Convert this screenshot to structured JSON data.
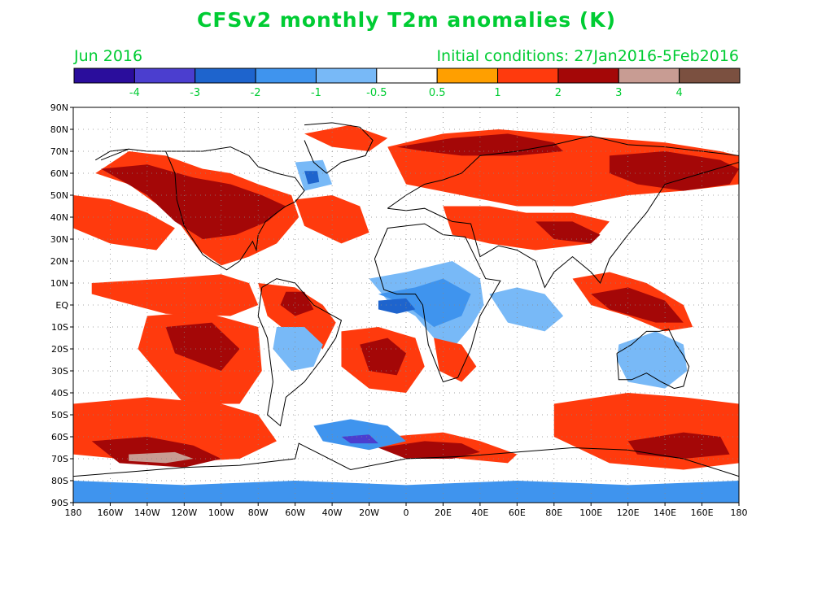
{
  "title": "CFSv2 monthly T2m anomalies (K)",
  "valid_month": "Jun 2016",
  "initial_conditions": "Initial conditions: 27Jan2016-5Feb2016",
  "colors": {
    "label_green": "#00cc33",
    "ocean": "#ffffff",
    "coast": "#000000"
  },
  "colorbar": {
    "colors": [
      "#2a0d9c",
      "#4b3ecf",
      "#1e64cd",
      "#3f94ee",
      "#78b9f7",
      "#ffffff",
      "#ff9f00",
      "#ff3a0d",
      "#a40707",
      "#c89c93",
      "#7b5040"
    ],
    "labels": [
      "-4",
      "-3",
      "-2",
      "-1",
      "-0.5",
      "0.5",
      "1",
      "2",
      "3",
      "4"
    ]
  },
  "map": {
    "lon_labels": [
      "180",
      "160W",
      "140W",
      "120W",
      "100W",
      "80W",
      "60W",
      "40W",
      "20W",
      "0",
      "20E",
      "40E",
      "60E",
      "80E",
      "100E",
      "120E",
      "140E",
      "160E",
      "180"
    ],
    "lat_labels": [
      "90N",
      "80N",
      "70N",
      "60N",
      "50N",
      "40N",
      "30N",
      "20N",
      "10N",
      "EQ",
      "10S",
      "20S",
      "30S",
      "40S",
      "50S",
      "60S",
      "70S",
      "80S",
      "90S"
    ],
    "anomaly_regions": [
      {
        "name": "north-america-warm",
        "level": "1",
        "lon": [
          -168,
          -150,
          -130,
          -110,
          -95,
          -80,
          -62,
          -58,
          -70,
          -85,
          -100,
          -112,
          -125,
          -150
        ],
        "lat": [
          60,
          70,
          68,
          62,
          60,
          55,
          50,
          40,
          28,
          22,
          18,
          25,
          40,
          55
        ]
      },
      {
        "name": "north-america-core",
        "level": "2",
        "lon": [
          -165,
          -140,
          -115,
          -95,
          -78,
          -65,
          -75,
          -92,
          -110,
          -125,
          -140
        ],
        "lat": [
          62,
          64,
          58,
          55,
          50,
          45,
          38,
          32,
          30,
          38,
          50
        ]
      },
      {
        "name": "north-atlantic-band",
        "level": "1",
        "lon": [
          -60,
          -40,
          -25,
          -20,
          -35,
          -55
        ],
        "lat": [
          48,
          50,
          45,
          33,
          28,
          36
        ]
      },
      {
        "name": "greenland-north",
        "level": "1",
        "lon": [
          -55,
          -30,
          -10,
          -20,
          -40
        ],
        "lat": [
          78,
          82,
          76,
          70,
          72
        ]
      },
      {
        "name": "labrador-cold",
        "level": "-0.5",
        "lon": [
          -60,
          -45,
          -40,
          -55
        ],
        "lat": [
          65,
          66,
          55,
          52
        ]
      },
      {
        "name": "labrador-cold-core",
        "level": "-2",
        "lon": [
          -55,
          -48,
          -47,
          -53
        ],
        "lat": [
          61,
          61,
          56,
          55
        ]
      },
      {
        "name": "north-pacific-warm",
        "level": "1",
        "lon": [
          -180,
          -160,
          -140,
          -125,
          -135,
          -160,
          -180
        ],
        "lat": [
          50,
          48,
          42,
          35,
          25,
          28,
          35
        ]
      },
      {
        "name": "east-pacific-tropics",
        "level": "1",
        "lon": [
          -170,
          -130,
          -100,
          -85,
          -80,
          -95,
          -130,
          -170
        ],
        "lat": [
          10,
          12,
          14,
          10,
          0,
          -5,
          -4,
          5
        ]
      },
      {
        "name": "south-pacific-warm",
        "level": "1",
        "lon": [
          -140,
          -110,
          -80,
          -78,
          -90,
          -120,
          -145
        ],
        "lat": [
          -5,
          -3,
          -10,
          -30,
          -45,
          -45,
          -20
        ]
      },
      {
        "name": "south-pacific-core",
        "level": "2",
        "lon": [
          -130,
          -105,
          -90,
          -100,
          -125
        ],
        "lat": [
          -10,
          -8,
          -20,
          -30,
          -22
        ]
      },
      {
        "name": "amazon-warm",
        "level": "1",
        "lon": [
          -80,
          -60,
          -45,
          -38,
          -45,
          -60,
          -75
        ],
        "lat": [
          10,
          8,
          0,
          -8,
          -20,
          -15,
          -5
        ]
      },
      {
        "name": "amazon-core",
        "level": "2",
        "lon": [
          -65,
          -55,
          -50,
          -60,
          -68
        ],
        "lat": [
          6,
          6,
          -2,
          -5,
          0
        ]
      },
      {
        "name": "south-america-cold",
        "level": "-0.5",
        "lon": [
          -70,
          -55,
          -45,
          -50,
          -62,
          -72
        ],
        "lat": [
          -10,
          -10,
          -18,
          -28,
          -30,
          -20
        ]
      },
      {
        "name": "south-atlantic-warm",
        "level": "1",
        "lon": [
          -35,
          -15,
          5,
          10,
          0,
          -20,
          -35
        ],
        "lat": [
          -12,
          -10,
          -15,
          -28,
          -40,
          -38,
          -28
        ]
      },
      {
        "name": "south-atlantic-core",
        "level": "2",
        "lon": [
          -25,
          -10,
          0,
          -5,
          -20
        ],
        "lat": [
          -18,
          -15,
          -22,
          -32,
          -30
        ]
      },
      {
        "name": "africa-cold",
        "level": "-0.5",
        "lon": [
          -20,
          0,
          25,
          40,
          42,
          35,
          25,
          15,
          5,
          -10
        ],
        "lat": [
          12,
          15,
          20,
          12,
          0,
          -10,
          -20,
          -15,
          -5,
          2
        ]
      },
      {
        "name": "africa-cold-core",
        "level": "-1",
        "lon": [
          -15,
          5,
          20,
          35,
          30,
          15,
          0
        ],
        "lat": [
          5,
          8,
          12,
          5,
          -5,
          -10,
          0
        ]
      },
      {
        "name": "gulf-of-guinea-cold",
        "level": "-2",
        "lon": [
          -15,
          0,
          5,
          -5,
          -15
        ],
        "lat": [
          2,
          3,
          -2,
          -4,
          -2
        ]
      },
      {
        "name": "southern-africa-warm",
        "level": "1",
        "lon": [
          15,
          30,
          38,
          30,
          18
        ],
        "lat": [
          -15,
          -18,
          -28,
          -35,
          -30
        ]
      },
      {
        "name": "eurasia-north-warm",
        "level": "1",
        "lon": [
          -10,
          20,
          50,
          80,
          110,
          140,
          170,
          180,
          180,
          150,
          120,
          90,
          60,
          30,
          0
        ],
        "lat": [
          72,
          78,
          80,
          78,
          76,
          74,
          70,
          68,
          55,
          52,
          50,
          45,
          45,
          50,
          55
        ]
      },
      {
        "name": "siberia-core",
        "level": "2",
        "lon": [
          -5,
          25,
          55,
          80,
          85,
          60,
          30,
          10
        ],
        "lat": [
          72,
          76,
          78,
          74,
          70,
          68,
          68,
          70
        ]
      },
      {
        "name": "east-siberia-core",
        "level": "2",
        "lon": [
          110,
          140,
          170,
          180,
          175,
          150,
          125,
          110
        ],
        "lat": [
          68,
          70,
          66,
          62,
          55,
          52,
          55,
          60
        ]
      },
      {
        "name": "middle-east-warm",
        "level": "1",
        "lon": [
          20,
          45,
          65,
          90,
          110,
          100,
          70,
          45,
          25
        ],
        "lat": [
          45,
          45,
          42,
          42,
          38,
          28,
          25,
          28,
          32
        ]
      },
      {
        "name": "tibet-core",
        "level": "2",
        "lon": [
          70,
          90,
          105,
          100,
          80
        ],
        "lat": [
          38,
          38,
          32,
          28,
          30
        ]
      },
      {
        "name": "maritime-continent-warm",
        "level": "1",
        "lon": [
          90,
          110,
          130,
          150,
          155,
          140,
          120,
          100
        ],
        "lat": [
          12,
          15,
          10,
          0,
          -10,
          -12,
          -5,
          0
        ]
      },
      {
        "name": "maritime-core",
        "level": "2",
        "lon": [
          100,
          120,
          140,
          150,
          135,
          110
        ],
        "lat": [
          5,
          8,
          2,
          -8,
          -8,
          -2
        ]
      },
      {
        "name": "australia-cold",
        "level": "-0.5",
        "lon": [
          115,
          135,
          150,
          152,
          140,
          120,
          114
        ],
        "lat": [
          -18,
          -12,
          -18,
          -30,
          -38,
          -35,
          -25
        ]
      },
      {
        "name": "indian-ocean-cold",
        "level": "-0.5",
        "lon": [
          45,
          60,
          75,
          85,
          75,
          55
        ],
        "lat": [
          5,
          8,
          5,
          -5,
          -12,
          -8
        ]
      },
      {
        "name": "southern-ocean-warm-1",
        "level": "1",
        "lon": [
          -180,
          -140,
          -100,
          -80,
          -70,
          -90,
          -130,
          -180
        ],
        "lat": [
          -45,
          -42,
          -45,
          -50,
          -62,
          -70,
          -72,
          -68
        ]
      },
      {
        "name": "southern-ocean-core-1",
        "level": "2",
        "lon": [
          -170,
          -140,
          -115,
          -100,
          -120,
          -155
        ],
        "lat": [
          -62,
          -60,
          -64,
          -70,
          -74,
          -72
        ]
      },
      {
        "name": "southern-ocean-ice-1",
        "level": "3",
        "lon": [
          -150,
          -125,
          -115,
          -130,
          -150
        ],
        "lat": [
          -68,
          -67,
          -70,
          -72,
          -71
        ]
      },
      {
        "name": "southern-ocean-warm-2",
        "level": "1",
        "lon": [
          -10,
          20,
          40,
          60,
          55,
          30,
          5,
          -15
        ],
        "lat": [
          -60,
          -58,
          -62,
          -68,
          -72,
          -70,
          -68,
          -65
        ]
      },
      {
        "name": "southern-ocean-core-2",
        "level": "2",
        "lon": [
          -15,
          10,
          30,
          40,
          25,
          0
        ],
        "lat": [
          -65,
          -62,
          -63,
          -67,
          -70,
          -70
        ]
      },
      {
        "name": "southern-ocean-cold",
        "level": "-1",
        "lon": [
          -50,
          -30,
          -10,
          0,
          -20,
          -45
        ],
        "lat": [
          -55,
          -52,
          -55,
          -62,
          -66,
          -62
        ]
      },
      {
        "name": "southern-ocean-cold-core",
        "level": "-3",
        "lon": [
          -35,
          -20,
          -15,
          -30
        ],
        "lat": [
          -60,
          -59,
          -63,
          -63
        ]
      },
      {
        "name": "southern-ocean-warm-3",
        "level": "1",
        "lon": [
          80,
          120,
          150,
          180,
          180,
          150,
          110,
          80
        ],
        "lat": [
          -45,
          -40,
          -42,
          -45,
          -72,
          -75,
          -72,
          -60
        ]
      },
      {
        "name": "southern-ocean-core-3",
        "level": "2",
        "lon": [
          120,
          150,
          170,
          175,
          150,
          125
        ],
        "lat": [
          -62,
          -58,
          -60,
          -68,
          -70,
          -68
        ]
      },
      {
        "name": "antarctic-cold-east",
        "level": "-1",
        "lon": [
          -180,
          -120,
          -60,
          0,
          60,
          120,
          180,
          180,
          -180
        ],
        "lat": [
          -80,
          -82,
          -80,
          -82,
          -80,
          -82,
          -80,
          -90,
          -90
        ]
      }
    ],
    "coastlines": [
      {
        "name": "north-america",
        "lon": [
          -168,
          -160,
          -150,
          -140,
          -130,
          -125,
          -124,
          -120,
          -117,
          -110,
          -105,
          -97,
          -90,
          -83,
          -81,
          -80,
          -76,
          -70,
          -65,
          -60,
          -55,
          -60,
          -70,
          -80,
          -85,
          -90,
          -95,
          -110,
          -125,
          -140,
          -150,
          -165
        ],
        "lat": [
          66,
          70,
          71,
          70,
          70,
          60,
          48,
          36,
          32,
          23,
          20,
          16,
          20,
          29,
          25,
          32,
          38,
          42,
          45,
          47,
          52,
          58,
          60,
          63,
          68,
          70,
          72,
          70,
          70,
          70,
          71,
          66
        ]
      },
      {
        "name": "greenland",
        "lon": [
          -55,
          -40,
          -25,
          -18,
          -22,
          -35,
          -43,
          -50,
          -55
        ],
        "lat": [
          82,
          83,
          81,
          75,
          68,
          65,
          60,
          65,
          75
        ]
      },
      {
        "name": "south-america",
        "lon": [
          -78,
          -70,
          -60,
          -50,
          -35,
          -38,
          -45,
          -55,
          -65,
          -68,
          -75,
          -72,
          -75,
          -80,
          -78
        ],
        "lat": [
          8,
          12,
          10,
          0,
          -7,
          -15,
          -24,
          -35,
          -42,
          -55,
          -50,
          -35,
          -15,
          -5,
          8
        ]
      },
      {
        "name": "africa",
        "lon": [
          -17,
          -10,
          0,
          10,
          20,
          32,
          43,
          51,
          40,
          35,
          28,
          20,
          12,
          9,
          5,
          -5,
          -12,
          -17
        ],
        "lat": [
          21,
          35,
          36,
          37,
          32,
          31,
          12,
          11,
          -5,
          -20,
          -33,
          -35,
          -18,
          0,
          5,
          5,
          7,
          21
        ]
      },
      {
        "name": "eurasia",
        "lon": [
          -10,
          0,
          10,
          20,
          30,
          40,
          60,
          80,
          100,
          120,
          140,
          160,
          180,
          180,
          160,
          140,
          130,
          120,
          110,
          105,
          100,
          90,
          80,
          75,
          70,
          60,
          50,
          40,
          35,
          25,
          20,
          10,
          0,
          -10
        ],
        "lat": [
          44,
          50,
          55,
          57,
          60,
          68,
          70,
          73,
          77,
          73,
          72,
          70,
          68,
          65,
          60,
          55,
          42,
          32,
          21,
          10,
          15,
          22,
          15,
          8,
          20,
          25,
          27,
          22,
          37,
          38,
          40,
          44,
          43,
          44
        ]
      },
      {
        "name": "australia",
        "lon": [
          114,
          122,
          130,
          137,
          142,
          146,
          150,
          153,
          150,
          145,
          138,
          130,
          122,
          115,
          114
        ],
        "lat": [
          -22,
          -18,
          -12,
          -12,
          -11,
          -18,
          -23,
          -28,
          -37,
          -38,
          -35,
          -31,
          -34,
          -34,
          -22
        ]
      },
      {
        "name": "antarctica",
        "lon": [
          -180,
          -150,
          -120,
          -90,
          -60,
          -58,
          -30,
          0,
          30,
          60,
          90,
          120,
          150,
          180
        ],
        "lat": [
          -78,
          -76,
          -74,
          -73,
          -70,
          -63,
          -75,
          -70,
          -69,
          -67,
          -65,
          -66,
          -70,
          -78
        ]
      }
    ]
  }
}
